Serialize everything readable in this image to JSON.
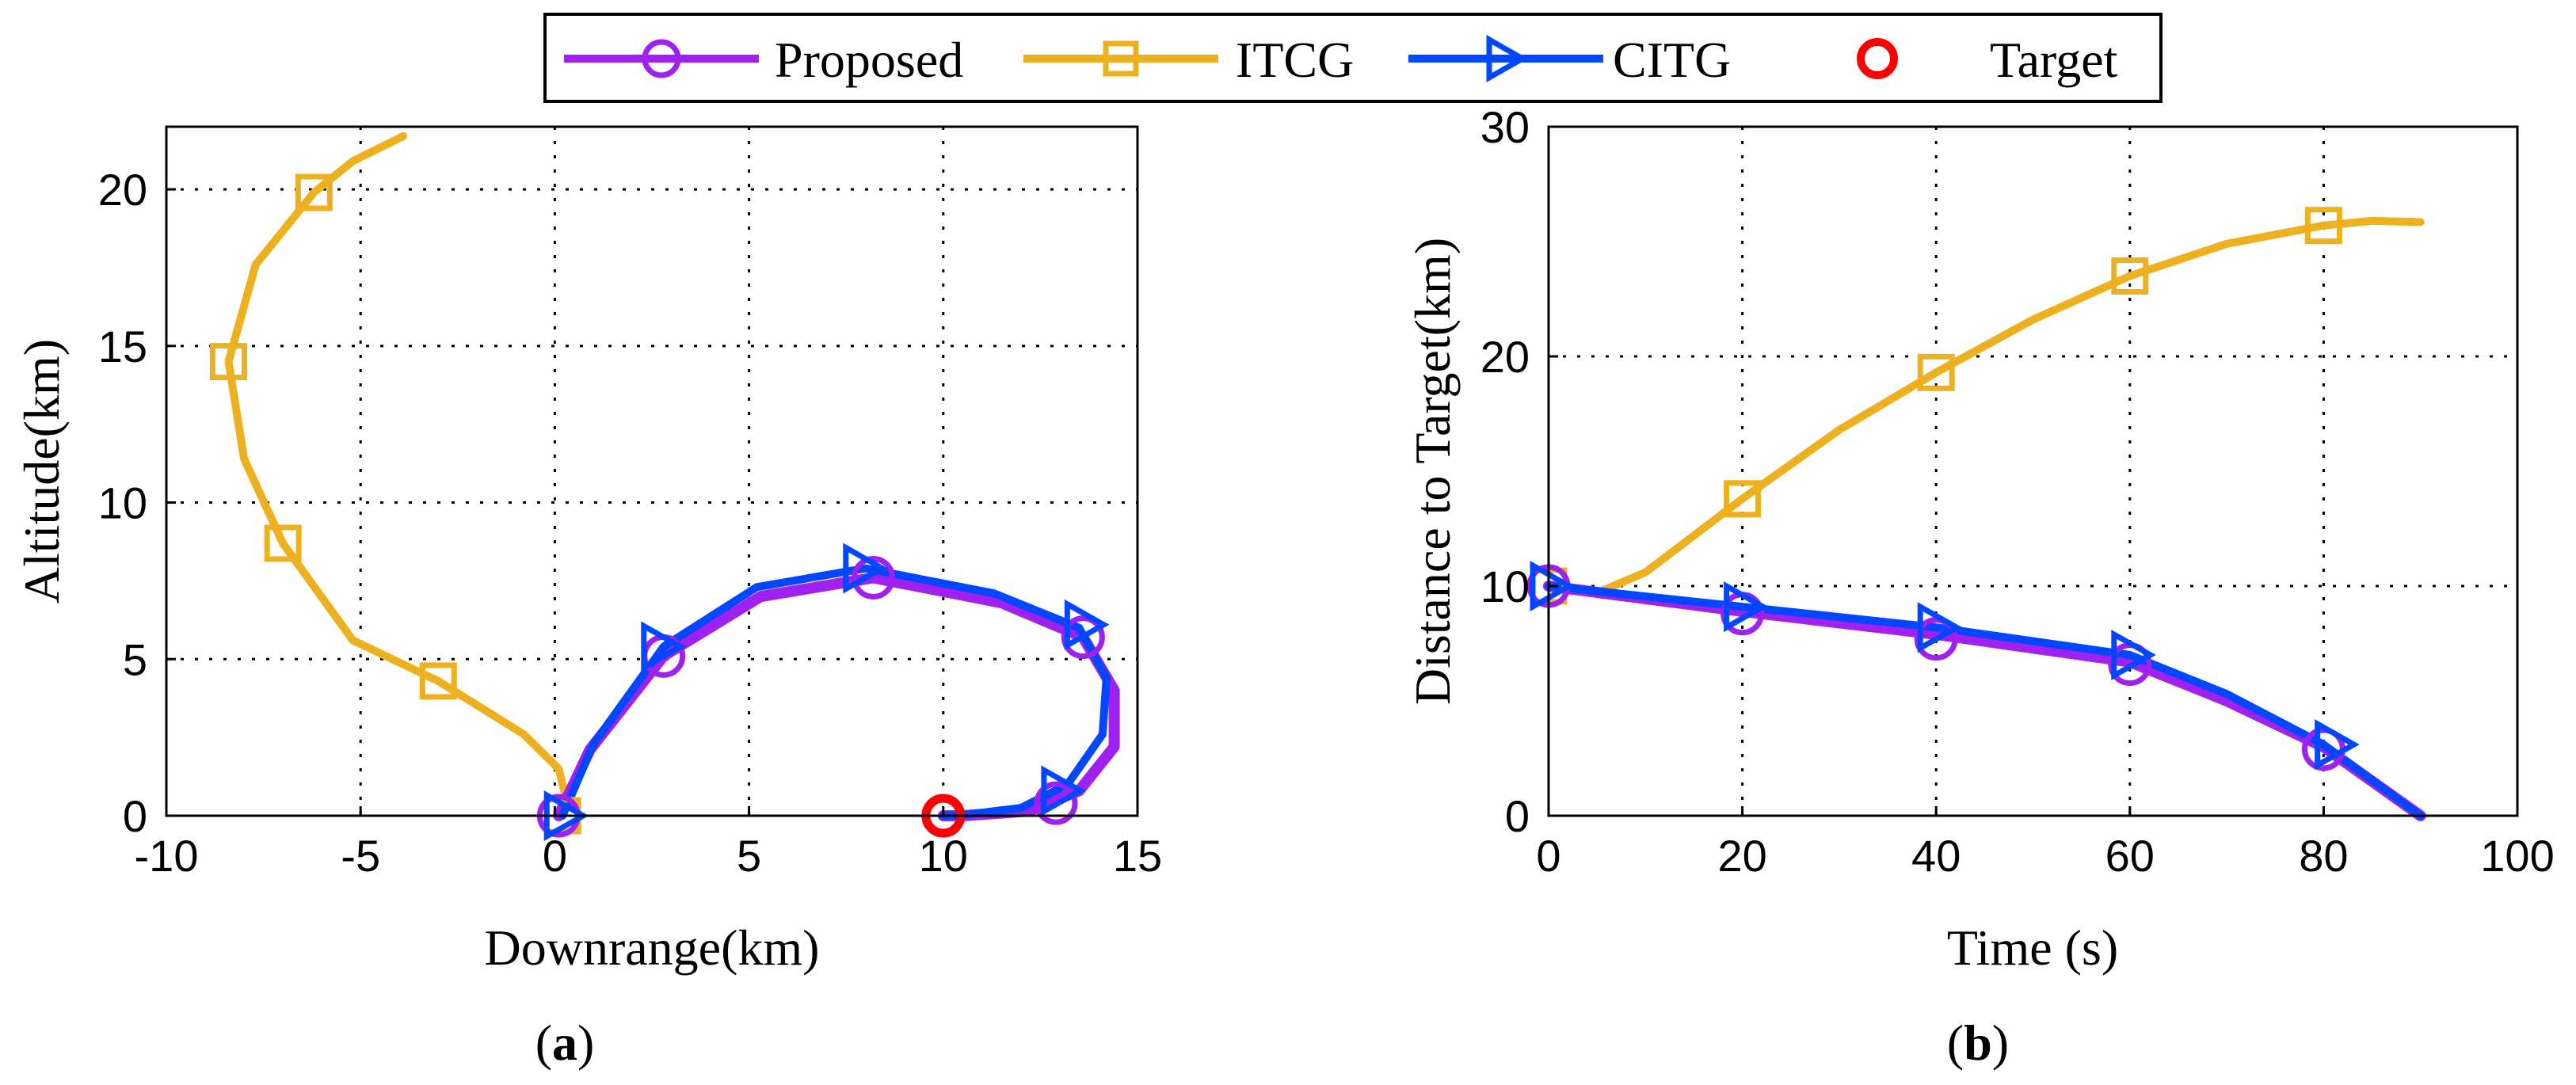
{
  "legend": {
    "entries": [
      {
        "name": "Proposed",
        "color": "#A020F0",
        "marker": "circle"
      },
      {
        "name": "ITCG",
        "color": "#EDB120",
        "marker": "square"
      },
      {
        "name": "CITG",
        "color": "#0047FF",
        "marker": "triangle-right"
      },
      {
        "name": "Target",
        "color": "#FF0000",
        "marker": "circle"
      }
    ]
  },
  "chart_data": [
    {
      "type": "line",
      "panel_label": "(a)",
      "panel_letter": "a",
      "xlabel": "Downrange(km)",
      "ylabel": "Altitude(km)",
      "xlim": [
        -10,
        15
      ],
      "ylim": [
        0,
        22
      ],
      "xticks": [
        -10,
        -5,
        0,
        5,
        10,
        15
      ],
      "yticks": [
        0,
        5,
        10,
        15,
        20
      ],
      "grid": true,
      "series": [
        {
          "name": "ITCG",
          "color": "#EDB120",
          "marker": "square",
          "points": [
            [
              0.3,
              0.5
            ],
            [
              0.1,
              1.5
            ],
            [
              -0.8,
              2.6
            ],
            [
              -3,
              4.3
            ],
            [
              -5.2,
              5.6
            ],
            [
              -7,
              8.7
            ],
            [
              -8,
              11.4
            ],
            [
              -8.4,
              14.5
            ],
            [
              -7.7,
              17.6
            ],
            [
              -6.2,
              19.9
            ],
            [
              -5.2,
              20.9
            ],
            [
              -3.9,
              21.7
            ]
          ],
          "markers": [
            [
              0.2,
              0
            ],
            [
              -3,
              4.3
            ],
            [
              -7,
              8.7
            ],
            [
              -8.4,
              14.5
            ],
            [
              -6.2,
              19.9
            ]
          ]
        },
        {
          "name": "Proposed",
          "color": "#A020F0",
          "marker": "circle",
          "points": [
            [
              0.1,
              0
            ],
            [
              0.9,
              2.1
            ],
            [
              2.8,
              5.1
            ],
            [
              5.3,
              7
            ],
            [
              8.2,
              7.6
            ],
            [
              11.5,
              6.8
            ],
            [
              13.6,
              5.7
            ],
            [
              14.4,
              4
            ],
            [
              14.4,
              2.2
            ],
            [
              13.5,
              0.8
            ],
            [
              12.2,
              0.15
            ],
            [
              10.5,
              0
            ],
            [
              10,
              0
            ]
          ],
          "markers": [
            [
              0.1,
              0
            ],
            [
              2.8,
              5.1
            ],
            [
              8.2,
              7.6
            ],
            [
              13.6,
              5.7
            ],
            [
              12.9,
              0.4
            ]
          ]
        },
        {
          "name": "CITG",
          "color": "#0047FF",
          "marker": "triangle-right",
          "points": [
            [
              0.2,
              0
            ],
            [
              1,
              2.3
            ],
            [
              2.8,
              5.4
            ],
            [
              5.2,
              7.3
            ],
            [
              8,
              7.9
            ],
            [
              11.3,
              7.1
            ],
            [
              13.5,
              6
            ],
            [
              14.2,
              4.4
            ],
            [
              14.1,
              2.6
            ],
            [
              13.2,
              1
            ],
            [
              12,
              0.25
            ],
            [
              10.5,
              0.02
            ],
            [
              10,
              0
            ]
          ],
          "markers": [
            [
              0.2,
              0
            ],
            [
              2.7,
              5.4
            ],
            [
              7.9,
              7.9
            ],
            [
              13.6,
              6.1
            ],
            [
              13.0,
              0.8
            ]
          ]
        },
        {
          "name": "Target",
          "color": "#FF0000",
          "marker": "circle",
          "points": [],
          "markers": [
            [
              10,
              0
            ]
          ]
        }
      ]
    },
    {
      "type": "line",
      "panel_label": "(b)",
      "panel_letter": "b",
      "xlabel": "Time (s)",
      "ylabel": "Distance to Target(km)",
      "xlim": [
        0,
        100
      ],
      "ylim": [
        0,
        30
      ],
      "xticks": [
        0,
        20,
        40,
        60,
        80,
        100
      ],
      "yticks": [
        0,
        10,
        20,
        30
      ],
      "grid": true,
      "series": [
        {
          "name": "ITCG",
          "color": "#EDB120",
          "marker": "square",
          "points": [
            [
              0,
              10
            ],
            [
              5,
              9.7
            ],
            [
              10,
              10.6
            ],
            [
              20,
              13.8
            ],
            [
              30,
              16.8
            ],
            [
              40,
              19.3
            ],
            [
              50,
              21.6
            ],
            [
              60,
              23.5
            ],
            [
              70,
              24.9
            ],
            [
              80,
              25.7
            ],
            [
              85,
              25.9
            ],
            [
              90,
              25.85
            ]
          ],
          "markers": [
            [
              0,
              10
            ],
            [
              20,
              13.8
            ],
            [
              40,
              19.3
            ],
            [
              60,
              23.5
            ],
            [
              80,
              25.7
            ]
          ]
        },
        {
          "name": "Proposed",
          "color": "#A020F0",
          "marker": "circle",
          "points": [
            [
              0,
              10
            ],
            [
              20,
              8.9
            ],
            [
              40,
              7.9
            ],
            [
              60,
              6.7
            ],
            [
              70,
              5
            ],
            [
              80,
              3
            ],
            [
              90,
              0
            ]
          ],
          "markers": [
            [
              0,
              10
            ],
            [
              20,
              8.8
            ],
            [
              40,
              7.7
            ],
            [
              60,
              6.6
            ],
            [
              80,
              2.9
            ]
          ]
        },
        {
          "name": "CITG",
          "color": "#0047FF",
          "marker": "triangle-right",
          "points": [
            [
              0,
              10
            ],
            [
              20,
              9.1
            ],
            [
              40,
              8.2
            ],
            [
              60,
              7
            ],
            [
              70,
              5.3
            ],
            [
              80,
              3.1
            ],
            [
              90,
              0
            ]
          ],
          "markers": [
            [
              0,
              10
            ],
            [
              20,
              9.1
            ],
            [
              40,
              8.2
            ],
            [
              60,
              7
            ],
            [
              81,
              3.1
            ]
          ]
        }
      ]
    }
  ]
}
